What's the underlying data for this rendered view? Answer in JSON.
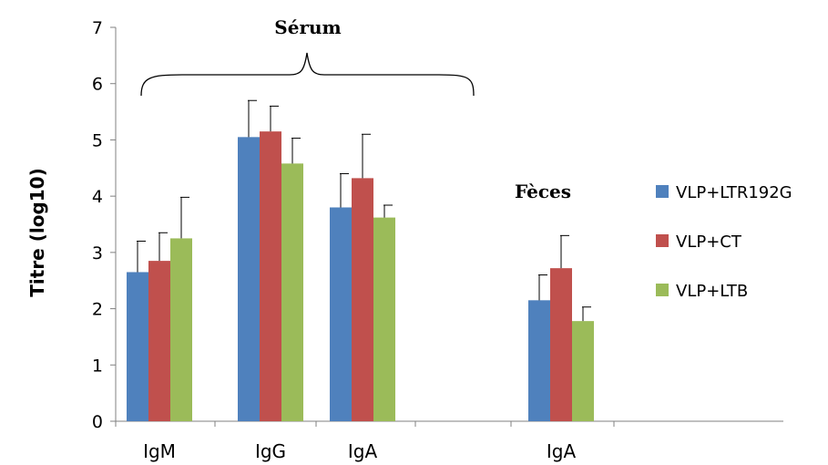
{
  "chart_data": {
    "type": "bar",
    "title": "",
    "xlabel": "",
    "ylabel": "Titre (log10)",
    "ylim": [
      0,
      7
    ],
    "yticks": [
      "0",
      "1",
      "2",
      "3",
      "4",
      "5",
      "6",
      "7"
    ],
    "grid": false,
    "legend_position": "right",
    "categories": [
      "IgM",
      "IgG",
      "IgA",
      "",
      "IgA"
    ],
    "series": [
      {
        "name": "VLP+LTR192G",
        "color": "#4F81BD",
        "values": [
          2.65,
          5.05,
          3.8,
          null,
          2.15
        ],
        "errors": [
          0.55,
          0.65,
          0.6,
          null,
          0.45
        ]
      },
      {
        "name": "VLP+CT",
        "color": "#C0504D",
        "values": [
          2.85,
          5.15,
          4.32,
          null,
          2.72
        ],
        "errors": [
          0.5,
          0.45,
          0.78,
          null,
          0.58
        ]
      },
      {
        "name": "VLP+LTB",
        "color": "#9BBB59",
        "values": [
          3.25,
          4.58,
          3.62,
          null,
          1.78
        ],
        "errors": [
          0.73,
          0.45,
          0.22,
          null,
          0.25
        ]
      }
    ],
    "annotations": {
      "serum": "Sérum",
      "feces": "Fèces"
    }
  }
}
